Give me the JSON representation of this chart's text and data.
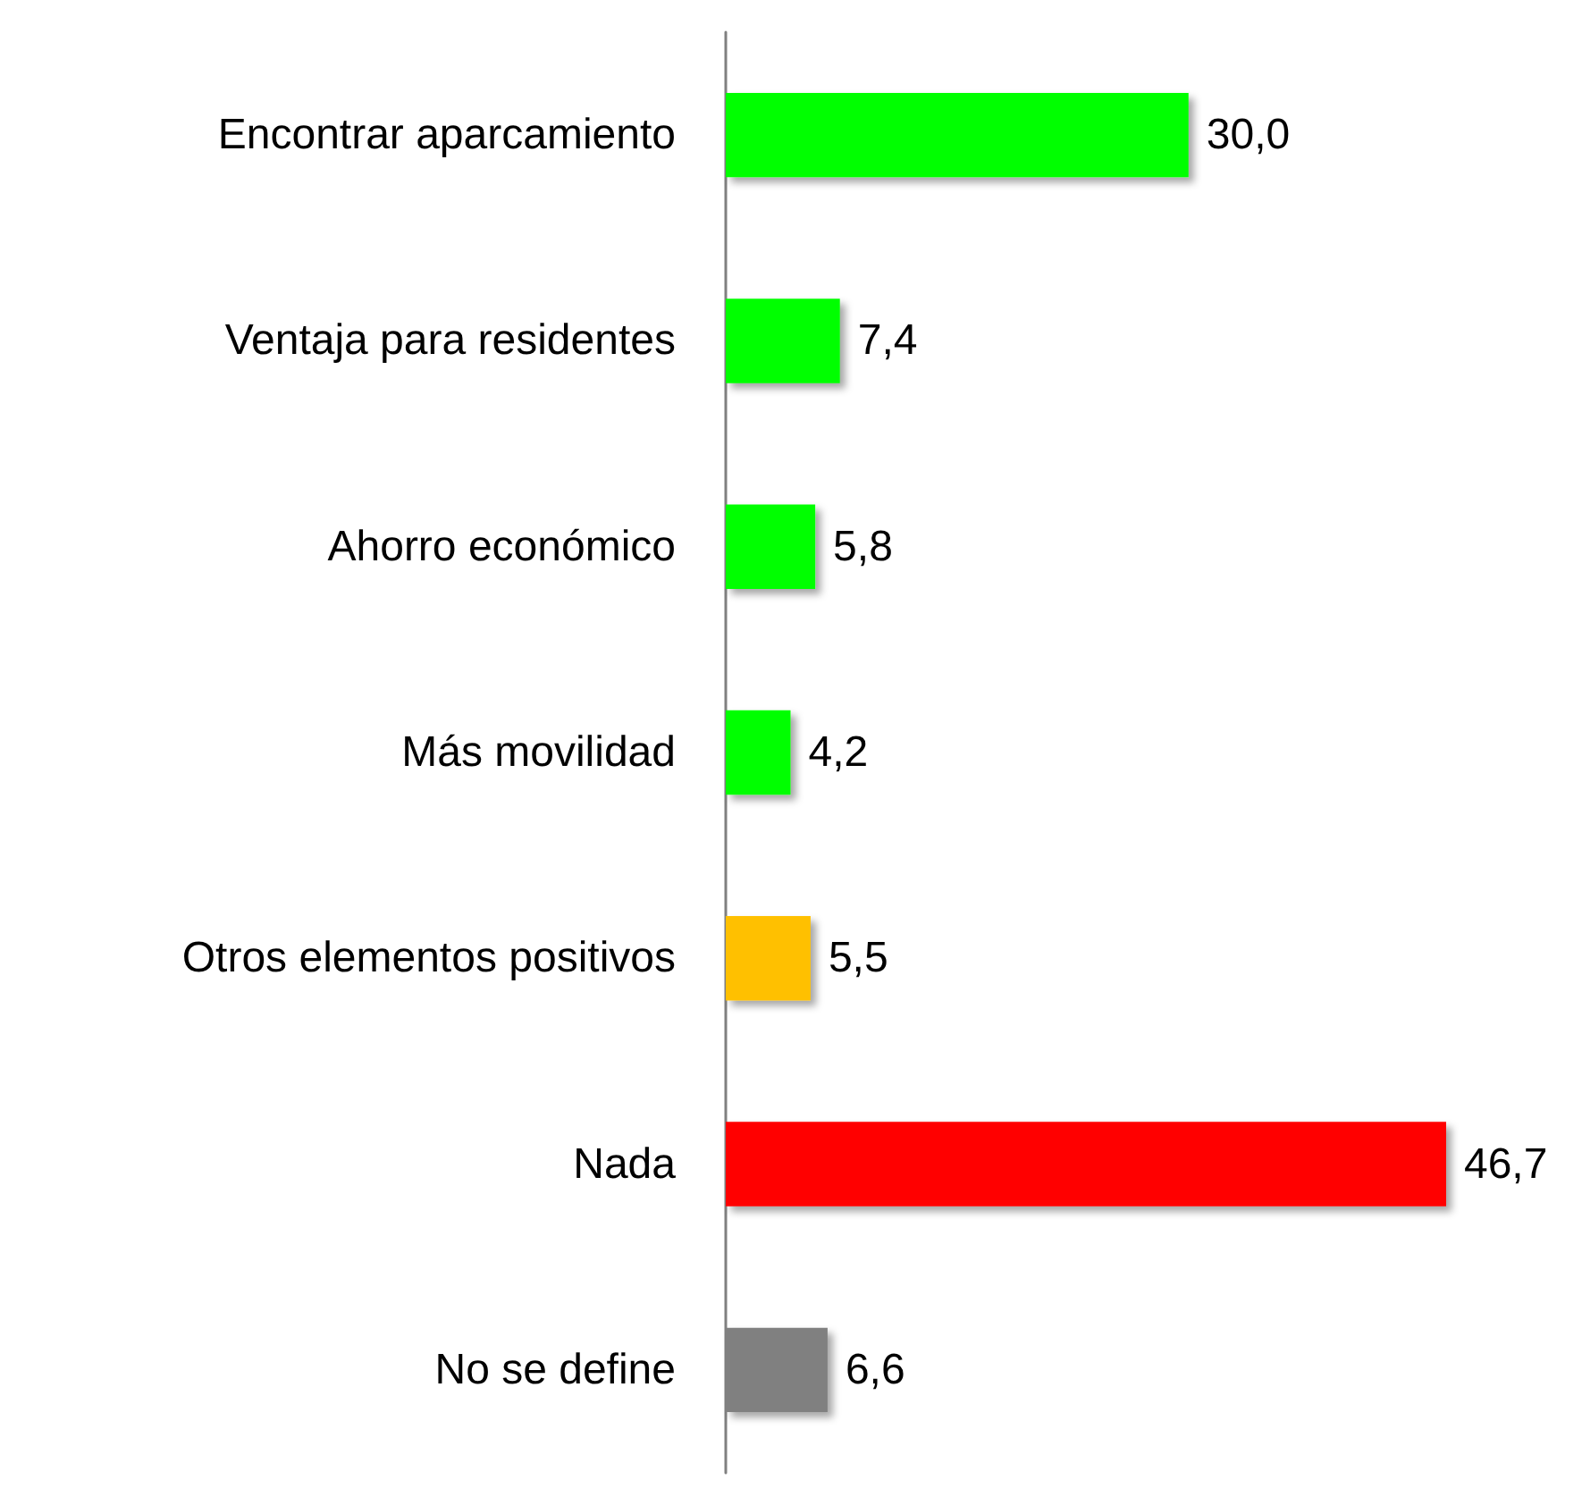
{
  "chart_data": {
    "type": "bar",
    "orientation": "horizontal",
    "categories": [
      "Encontrar aparcamiento",
      "Ventaja para residentes",
      "Ahorro económico",
      "Más movilidad",
      "Otros elementos positivos",
      "Nada",
      "No se define"
    ],
    "values": [
      30.0,
      7.4,
      5.8,
      4.2,
      5.5,
      46.7,
      6.6
    ],
    "colors": [
      "#00ff00",
      "#00ff00",
      "#00ff00",
      "#00ff00",
      "#ffc000",
      "#ff0000",
      "#808080"
    ],
    "value_labels": [
      "30,0",
      "7,4",
      "5,8",
      "4,2",
      "5,5",
      "46,7",
      "6,6"
    ]
  }
}
